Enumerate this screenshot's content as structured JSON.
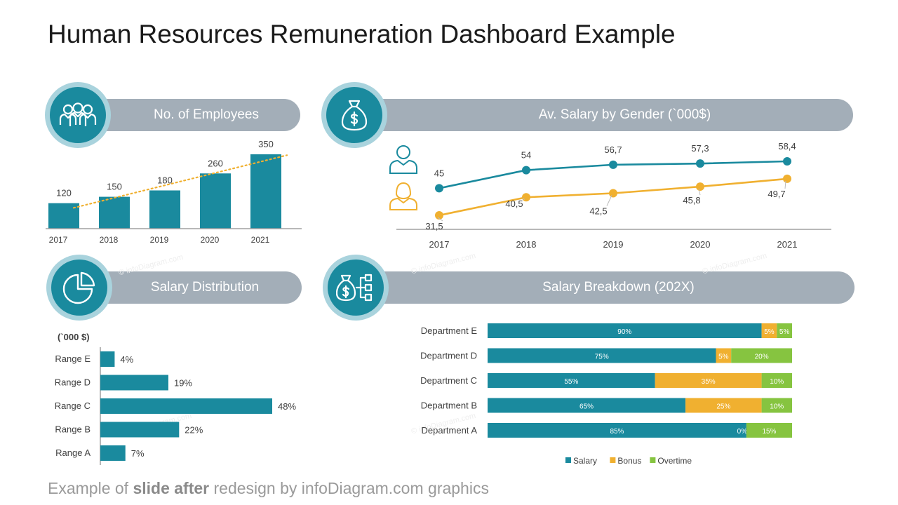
{
  "title": "Human Resources Remuneration Dashboard Example",
  "footer": {
    "pre": "Example of ",
    "bold": "slide after",
    "post": " redesign by infoDiagram.com graphics"
  },
  "watermark": "© infoDiagram.com",
  "colors": {
    "teal": "#1a8a9e",
    "orange": "#f0b030",
    "green": "#86c440",
    "pill": "#a3aeb8",
    "ring": "#a9d3dd"
  },
  "panels": {
    "employees": {
      "title": "No. of Employees",
      "icon": "people-group-icon"
    },
    "salary_gender": {
      "title": "Av. Salary by Gender (`000$)",
      "icon": "money-bag-icon"
    },
    "distribution": {
      "title": "Salary Distribution",
      "icon": "pie-chart-icon"
    },
    "breakdown": {
      "title": "Salary Breakdown  (202X)",
      "icon": "money-bag-flow-icon"
    }
  },
  "chart_data": [
    {
      "type": "bar",
      "categories": [
        "2017",
        "2018",
        "2019",
        "2020",
        "2021"
      ],
      "values": [
        120,
        150,
        180,
        260,
        350
      ],
      "labels": [
        "120",
        "150",
        "180",
        "260",
        "350"
      ],
      "trendline": true
    },
    {
      "type": "line",
      "x": [
        "2017",
        "2018",
        "2019",
        "2020",
        "2021"
      ],
      "series": [
        {
          "icon": "male-person-icon",
          "color": "#1a8a9e",
          "values": [
            45,
            54,
            56.7,
            57.3,
            58.4
          ],
          "labels": [
            "45",
            "54",
            "56,7",
            "57,3",
            "58,4"
          ]
        },
        {
          "icon": "female-person-icon",
          "color": "#f0b030",
          "values": [
            31.5,
            40.5,
            42.5,
            45.8,
            49.7
          ],
          "labels": [
            "31,5",
            "40,5",
            "42,5",
            "45,8",
            "49,7"
          ]
        }
      ]
    },
    {
      "type": "bar",
      "orientation": "horizontal",
      "unit_label": "(`000 $)",
      "categories": [
        "Range E",
        "Range D",
        "Range C",
        "Range B",
        "Range A"
      ],
      "values": [
        4,
        19,
        48,
        22,
        7
      ],
      "labels": [
        "4%",
        "19%",
        "48%",
        "22%",
        "7%"
      ]
    },
    {
      "type": "bar",
      "orientation": "horizontal",
      "stacked": true,
      "categories": [
        "Department E",
        "Department D",
        "Department C",
        "Department B",
        "Department A"
      ],
      "series": [
        {
          "name": "Salary",
          "color": "#1a8a9e",
          "values": [
            90,
            75,
            55,
            65,
            85
          ],
          "labels": [
            "90%",
            "75%",
            "55%",
            "65%",
            "85%"
          ]
        },
        {
          "name": "Bonus",
          "color": "#f0b030",
          "values": [
            5,
            5,
            35,
            25,
            0
          ],
          "labels": [
            "5%",
            "5%",
            "35%",
            "25%",
            "0%"
          ]
        },
        {
          "name": "Overtime",
          "color": "#86c440",
          "values": [
            5,
            20,
            10,
            10,
            15
          ],
          "labels": [
            "5%",
            "20%",
            "10%",
            "10%",
            "15%"
          ]
        }
      ],
      "legend": "bottom"
    }
  ]
}
